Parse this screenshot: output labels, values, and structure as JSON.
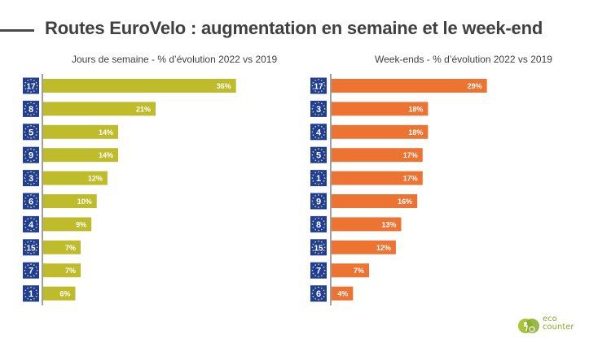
{
  "title": "Routes EuroVelo : augmentation en semaine et le week-end",
  "brand": {
    "line1": "eco",
    "line2": "counter"
  },
  "colors": {
    "weekday": "#bfbc2b",
    "weekend": "#ec7332",
    "flag": "#1d3e9c",
    "star": "#f7d83a",
    "axis": "#404040"
  },
  "chart_data": [
    {
      "type": "bar",
      "orientation": "horizontal",
      "title": "Jours de semaine - % d’évolution 2022 vs 2019",
      "categories": [
        "17",
        "8",
        "5",
        "9",
        "3",
        "6",
        "4",
        "15",
        "7",
        "1"
      ],
      "values": [
        36,
        21,
        14,
        14,
        12,
        10,
        9,
        7,
        7,
        6
      ],
      "labels": [
        "36%",
        "21%",
        "14%",
        "14%",
        "12%",
        "10%",
        "9%",
        "7%",
        "7%",
        "6%"
      ],
      "unit": "%",
      "xlim": [
        0,
        40
      ],
      "grid": false,
      "color": "#bfbc2b"
    },
    {
      "type": "bar",
      "orientation": "horizontal",
      "title": "Week-ends - % d’évolution 2022 vs 2019",
      "categories": [
        "17",
        "3",
        "4",
        "5",
        "1",
        "9",
        "8",
        "15",
        "7",
        "6"
      ],
      "values": [
        29,
        18,
        18,
        17,
        17,
        16,
        13,
        12,
        7,
        4
      ],
      "labels": [
        "29%",
        "18%",
        "18%",
        "17%",
        "17%",
        "16%",
        "13%",
        "12%",
        "7%",
        "4%"
      ],
      "unit": "%",
      "xlim": [
        0,
        40
      ],
      "grid": false,
      "color": "#ec7332"
    }
  ]
}
